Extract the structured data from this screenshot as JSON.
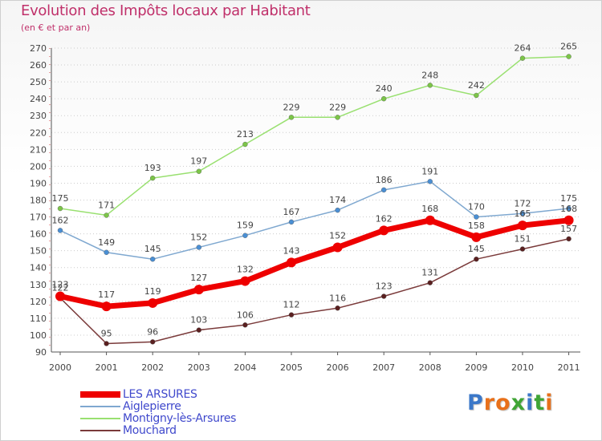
{
  "colors": {
    "title": "#c0306a",
    "legend_text": "#3f48cc",
    "axis_text": "#444444",
    "grid": "#cccccc",
    "axis": "#555555"
  },
  "logo": {
    "text": "Proxiti",
    "letter_colors": [
      "#3b78c9",
      "#e8701a",
      "#e8701a",
      "#3fa535",
      "#3b78c9",
      "#3fa535",
      "#e8701a"
    ]
  },
  "chart_data": {
    "type": "line",
    "title": "Evolution des Impôts locaux par Habitant",
    "subtitle": "(en € et par an)",
    "xlabel": "",
    "ylabel": "",
    "x": [
      "2000",
      "2001",
      "2002",
      "2003",
      "2004",
      "2005",
      "2006",
      "2007",
      "2008",
      "2009",
      "2010",
      "2011"
    ],
    "ylim": [
      90,
      270
    ],
    "yticks": [
      90,
      100,
      110,
      120,
      130,
      140,
      150,
      160,
      170,
      180,
      190,
      200,
      210,
      220,
      230,
      240,
      250,
      260,
      270
    ],
    "grid": true,
    "legend_position": "bottom-left",
    "series": [
      {
        "name": "Montigny-lès-Arsures",
        "color": "#99e070",
        "marker": "#7cc548",
        "width": 1.5,
        "values": [
          175,
          171,
          193,
          197,
          213,
          229,
          229,
          240,
          248,
          242,
          264,
          265
        ]
      },
      {
        "name": "Aiglepierre",
        "color": "#7fa8d0",
        "marker": "#4a8fd4",
        "width": 1.5,
        "values": [
          162,
          149,
          145,
          152,
          159,
          167,
          174,
          186,
          191,
          170,
          172,
          175
        ]
      },
      {
        "name": "Mouchard",
        "color": "#7a3a3a",
        "marker": "#5a2020",
        "width": 1.5,
        "values": [
          122,
          95,
          96,
          103,
          106,
          112,
          116,
          123,
          131,
          145,
          151,
          157
        ]
      },
      {
        "name": "LES ARSURES",
        "color": "#ee0000",
        "marker": "#ee0000",
        "width": 7,
        "values": [
          123,
          117,
          119,
          127,
          132,
          143,
          152,
          162,
          168,
          158,
          165,
          168
        ]
      }
    ],
    "data_labels": [
      [
        "175",
        "171",
        "193",
        "197",
        "213",
        "229",
        "229",
        "240",
        "248",
        "242",
        "264",
        "265"
      ],
      [
        "162",
        "149",
        "145",
        "152",
        "159",
        "167",
        "174",
        "186",
        "191",
        "170",
        "172",
        "175"
      ],
      [
        "122",
        "95",
        "96",
        "103",
        "106",
        "112",
        "116",
        "123",
        "131",
        "145",
        "151",
        "157"
      ],
      [
        "123",
        "117",
        "119",
        "127",
        "132",
        "143",
        "152",
        "162",
        "168",
        "158",
        "165",
        "168"
      ]
    ]
  },
  "legend": [
    {
      "label": "LES ARSURES"
    },
    {
      "label": "Aiglepierre"
    },
    {
      "label": "Montigny-lès-Arsures"
    },
    {
      "label": "Mouchard"
    }
  ]
}
